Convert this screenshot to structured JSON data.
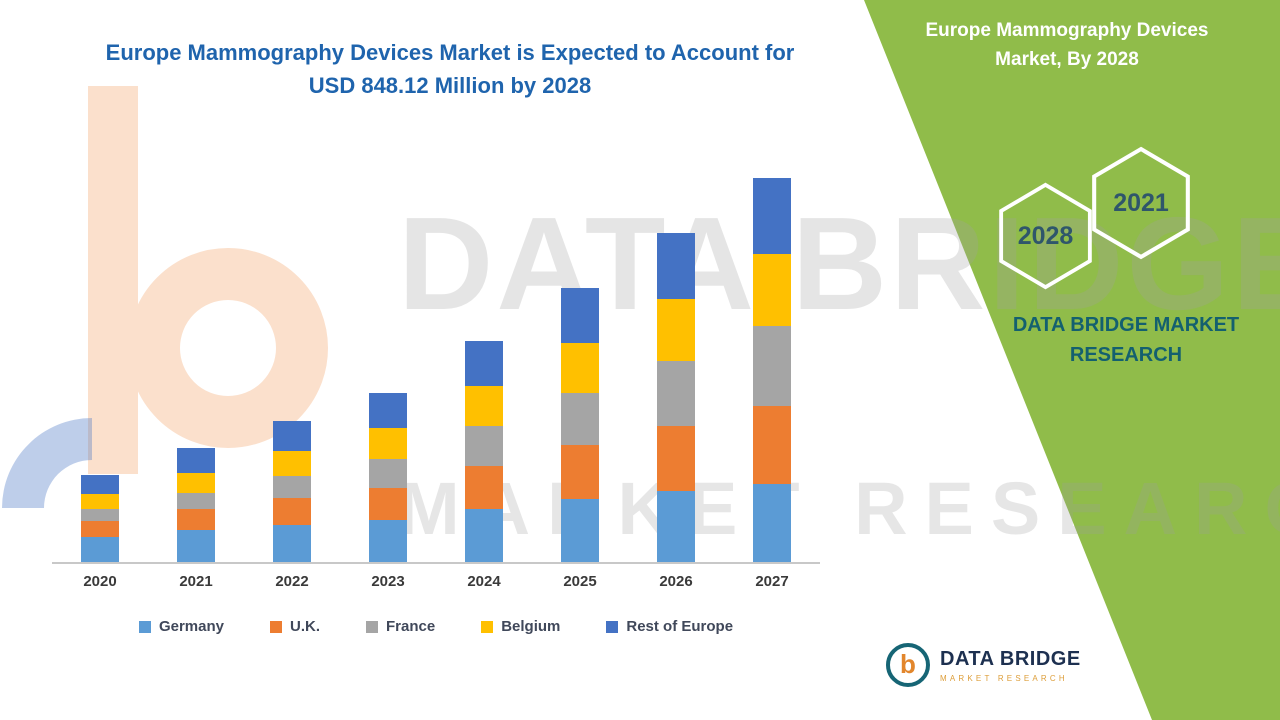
{
  "page": {
    "side_panel": {
      "title": "Europe Mammography Devices Market, By 2028",
      "hexagons": [
        {
          "label": "2028"
        },
        {
          "label": "2021"
        }
      ],
      "brand_text": "DATA BRIDGE MARKET RESEARCH",
      "background": "#90bc4a"
    },
    "watermark": {
      "line1": "DATA BRIDGE",
      "line2": "MARKET RESEARCH"
    },
    "logo_card": {
      "brand": "DATA BRIDGE",
      "subtitle": "MARKET RESEARCH",
      "monogram": "b"
    }
  },
  "chart_data": {
    "type": "bar",
    "stacked": true,
    "title": "Europe Mammography Devices Market is Expected to Account for USD 848.12 Million by 2028",
    "unit": "USD Million",
    "categories": [
      "2020",
      "2021",
      "2022",
      "2023",
      "2024",
      "2025",
      "2026",
      "2027"
    ],
    "series": [
      {
        "name": "Germany",
        "color": "#5B9BD5",
        "values": [
          50,
          63,
          74,
          84,
          105,
          125,
          141,
          156
        ]
      },
      {
        "name": "U.K.",
        "color": "#ED7D31",
        "values": [
          32,
          42,
          53,
          64,
          86,
          107,
          130,
          154
        ]
      },
      {
        "name": "France",
        "color": "#A5A5A5",
        "values": [
          24,
          33,
          45,
          57,
          79,
          104,
          130,
          160
        ]
      },
      {
        "name": "Belgium",
        "color": "#FFC000",
        "values": [
          30,
          39,
          49,
          61,
          80,
          100,
          123,
          144
        ]
      },
      {
        "name": "Rest of Europe",
        "color": "#4472C4",
        "values": [
          38,
          49,
          59,
          70,
          90,
          110,
          130,
          150
        ]
      }
    ],
    "totals": [
      174,
      226,
      280,
      336,
      440,
      546,
      654,
      764
    ],
    "ylim": [
      0,
      800
    ],
    "grid": false,
    "legend_position": "bottom",
    "y_axis_visible": false
  }
}
